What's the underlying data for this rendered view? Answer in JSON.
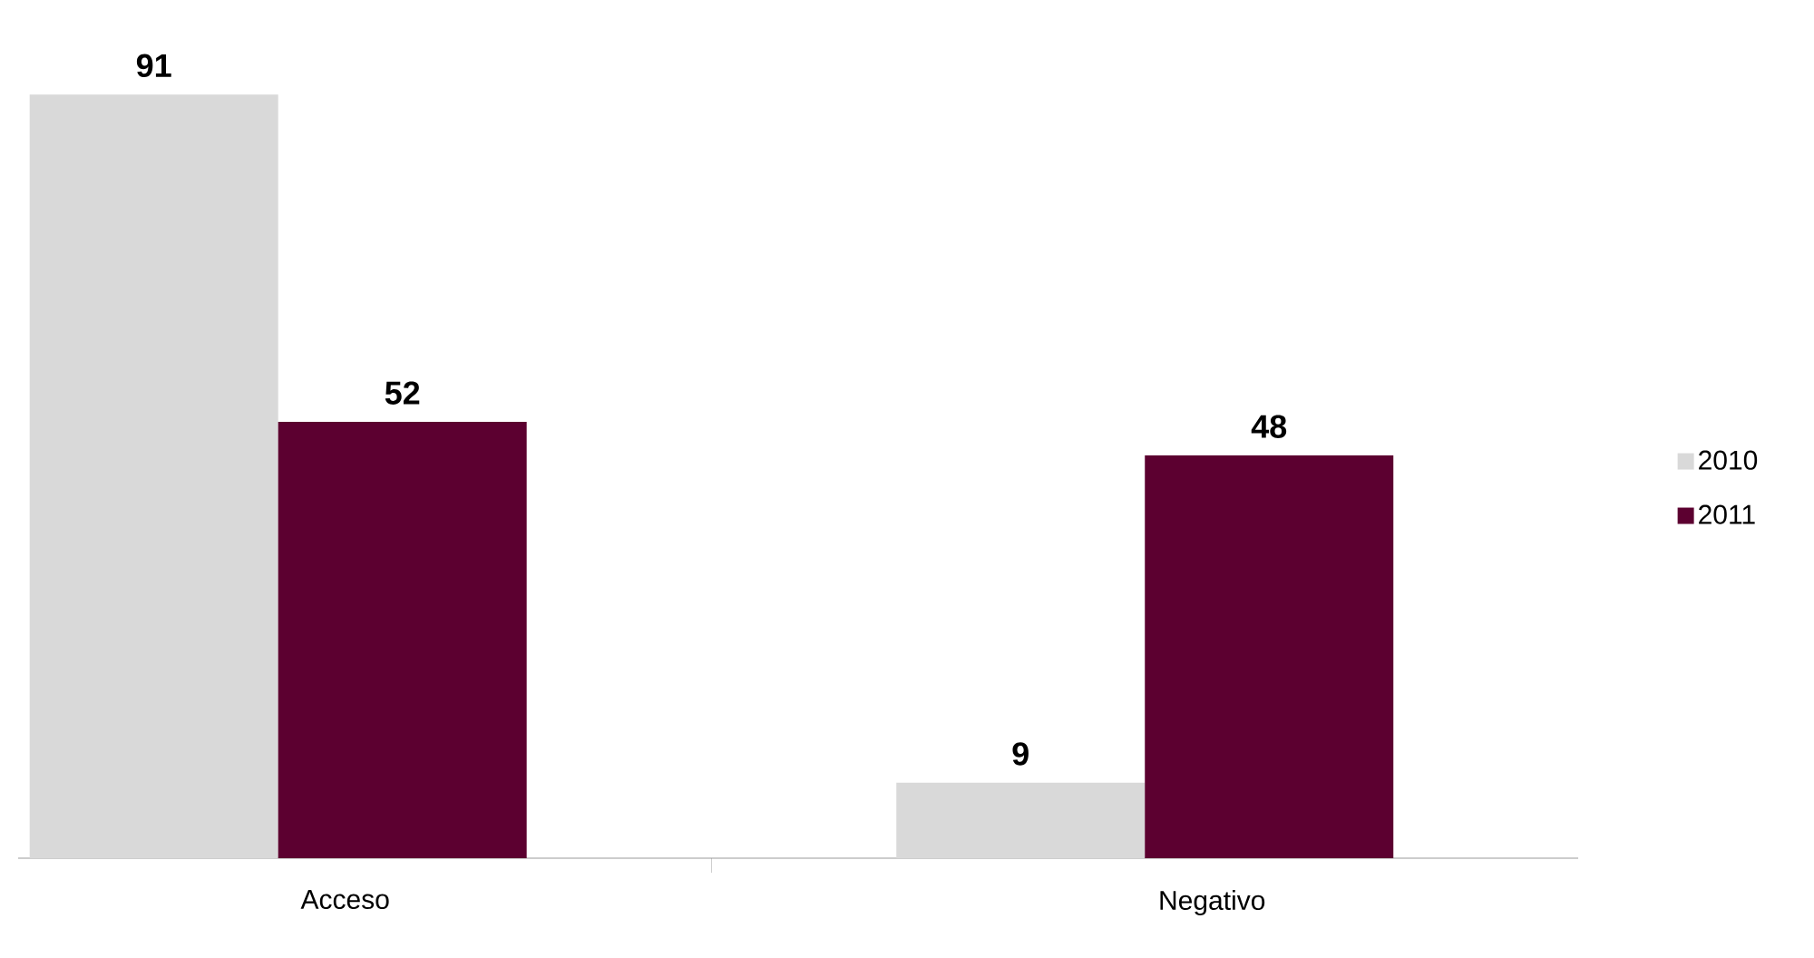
{
  "chart_data": {
    "type": "bar",
    "categories": [
      "Acceso",
      "Negativo"
    ],
    "series": [
      {
        "name": "2010",
        "color": "#d9d9d9",
        "values": [
          91,
          9
        ]
      },
      {
        "name": "2011",
        "color": "#5c0030",
        "values": [
          52,
          48
        ]
      }
    ],
    "data_labels": true,
    "legend": "right"
  }
}
